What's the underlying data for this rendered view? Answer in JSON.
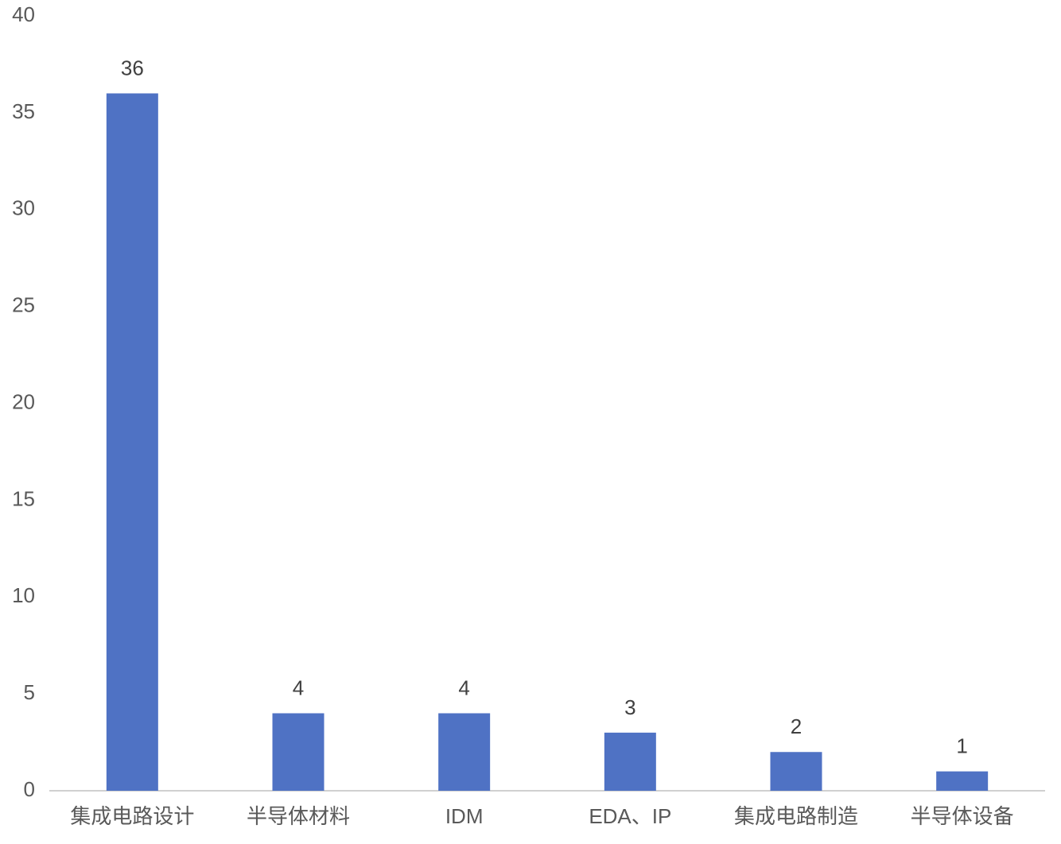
{
  "chart_data": {
    "type": "bar",
    "categories": [
      "集成电路设计",
      "半导体材料",
      "IDM",
      "EDA、IP",
      "集成电路制造",
      "半导体设备"
    ],
    "values": [
      36,
      4,
      4,
      3,
      2,
      1
    ],
    "color": "#4f72c4",
    "ylim": [
      0,
      40
    ],
    "yticks": [
      0,
      5,
      10,
      15,
      20,
      25,
      30,
      35,
      40
    ],
    "grid": false,
    "data_labels": true
  }
}
